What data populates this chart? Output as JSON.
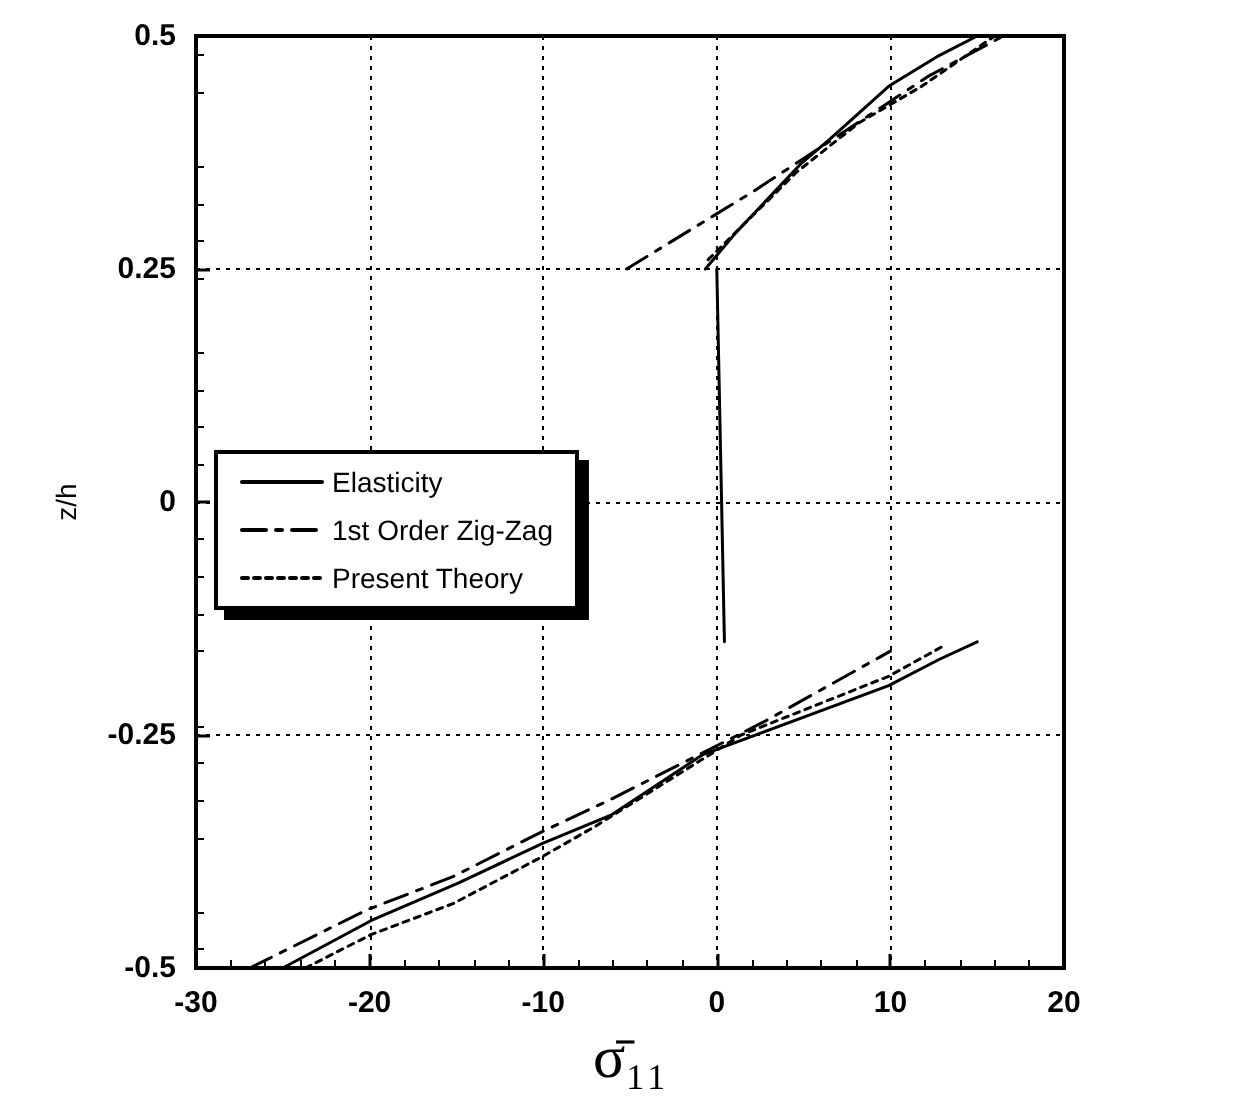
{
  "chart_data": {
    "type": "line",
    "xlabel": "σ̄₁₁",
    "ylabel": "z/h",
    "xlim": [
      -30,
      20
    ],
    "xticks": [
      -30,
      -20,
      -10,
      0,
      10,
      20
    ],
    "ylim": [
      -0.5,
      0.5
    ],
    "yticks": [
      -0.5,
      -0.25,
      0,
      0.25,
      0.5
    ],
    "grid": true,
    "legend": "left",
    "marker": "none",
    "series": [
      {
        "name": "Elasticity",
        "color": "#000000",
        "line_style": "solid",
        "x": [
          -25,
          -19.9,
          -14.9,
          -10,
          -6.1,
          -0.8,
          9.9,
          12.8,
          15
        ],
        "values": [
          -0.5,
          -0.449,
          -0.409,
          -0.366,
          -0.336,
          -0.271,
          -0.197,
          -0.169,
          -0.15
        ]
      },
      {
        "color": "#000000",
        "line_style": "solid",
        "x": [
          0.44,
          0
        ],
        "values": [
          -0.15,
          0.25
        ]
      },
      {
        "color": "#000000",
        "line_style": "solid",
        "x": [
          -0.66,
          1.1,
          4.9,
          6.5,
          9.9,
          12.8,
          15
        ],
        "values": [
          0.25,
          0.289,
          0.364,
          0.389,
          0.446,
          0.479,
          0.5
        ]
      },
      {
        "name": "1st Order Zig-Zag",
        "color": "#000000",
        "line_style": "dashed",
        "x": [
          -26.9,
          -20.2,
          -15.2,
          -10.2,
          -6.1,
          2.7,
          10
        ],
        "values": [
          -0.5,
          -0.438,
          -0.402,
          -0.355,
          -0.319,
          -0.236,
          -0.16
        ]
      },
      {
        "color": "#000000",
        "line_style": "dashed",
        "x": [
          -5.2,
          -0.2,
          2,
          5.2,
          9.6,
          12.2,
          16.5
        ],
        "values": [
          0.25,
          0.307,
          0.332,
          0.371,
          0.425,
          0.457,
          0.5
        ]
      },
      {
        "name": "Present Theory",
        "color": "#000000",
        "line_style": "dotted",
        "x": [
          -23.7,
          -19.9,
          -15.2,
          -10,
          -7,
          1.4,
          9.9,
          13
        ],
        "values": [
          -0.5,
          -0.464,
          -0.431,
          -0.38,
          -0.348,
          -0.25,
          -0.187,
          -0.155
        ]
      },
      {
        "color": "#000000",
        "line_style": "dotted",
        "x": [
          -0.5,
          4.6,
          8.2,
          11.8,
          16
        ],
        "values": [
          0.26,
          0.354,
          0.407,
          0.446,
          0.5
        ]
      }
    ]
  }
}
